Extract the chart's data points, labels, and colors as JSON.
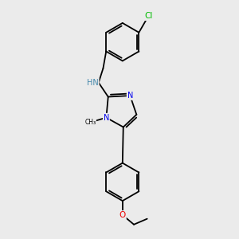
{
  "bg_color": "#ebebeb",
  "bond_color": "#000000",
  "bond_width": 1.3,
  "atom_colors": {
    "N": "#0000ee",
    "O": "#ee0000",
    "Cl": "#00bb00",
    "H_label": "#4488aa"
  },
  "font_size": 7.0,
  "dbo": 0.055
}
